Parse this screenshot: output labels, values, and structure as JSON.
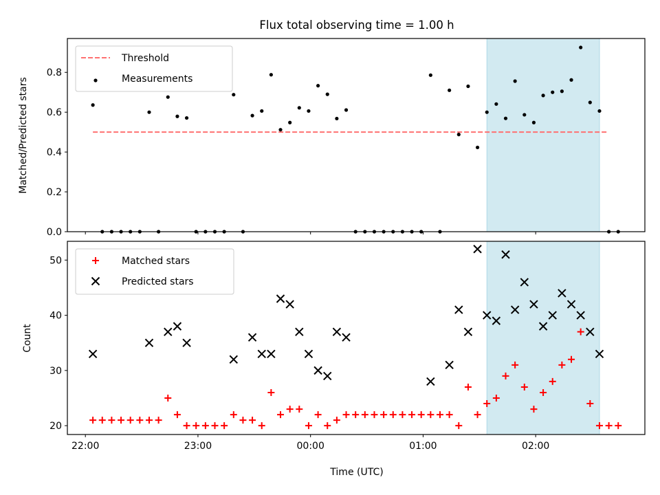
{
  "figure": {
    "title": "Flux total observing time = 1.00 h"
  },
  "chart_data": [
    {
      "type": "scatter",
      "ylabel": "Matched/Predicted stars",
      "xlabel": "",
      "x_unit": "hours from 22:00 UTC",
      "xlim": [
        -0.16,
        4.97
      ],
      "ylim": [
        0.0,
        0.97
      ],
      "yticks": [
        "0.0",
        "0.2",
        "0.4",
        "0.6",
        "0.8"
      ],
      "ytick_values": [
        0.0,
        0.2,
        0.4,
        0.6,
        0.8
      ],
      "highlight_span": [
        3.5667,
        4.5667
      ],
      "highlight_color": "#add8e6",
      "legend": [
        {
          "label": "Threshold",
          "marker": "dashed-line",
          "color": "#ff7070"
        },
        {
          "label": "Measurements",
          "marker": "dot",
          "color": "#000000"
        }
      ],
      "threshold": {
        "value": 0.5,
        "x_range": [
          0.0667,
          4.6333
        ]
      },
      "series": [
        {
          "name": "Measurements",
          "x": [
            0.0667,
            0.15,
            0.2333,
            0.3167,
            0.4,
            0.4833,
            0.5667,
            0.65,
            0.7333,
            0.8167,
            0.9,
            0.9833,
            1.0667,
            1.15,
            1.2333,
            1.3167,
            1.4,
            1.4833,
            1.5667,
            1.65,
            1.7333,
            1.8167,
            1.9,
            1.9833,
            2.0667,
            2.15,
            2.2333,
            2.3167,
            2.4,
            2.4833,
            2.5667,
            2.65,
            2.7333,
            2.8167,
            2.9,
            2.9833,
            3.0667,
            3.15,
            3.2333,
            3.3167,
            3.4,
            3.4833,
            3.5667,
            3.65,
            3.7333,
            3.8167,
            3.9,
            3.9833,
            4.0667,
            4.15,
            4.2333,
            4.3167,
            4.4,
            4.4833,
            4.5667,
            4.65,
            4.7333
          ],
          "y": [
            0.636,
            0,
            0,
            0,
            0,
            0,
            0.6,
            0,
            0.676,
            0.579,
            0.571,
            0,
            0,
            0,
            0,
            0.688,
            0,
            0.583,
            0.606,
            0.788,
            0.512,
            0.548,
            0.622,
            0.606,
            0.733,
            0.69,
            0.568,
            0.611,
            0,
            0,
            0,
            0,
            0,
            0,
            0,
            0,
            0.786,
            0,
            0.71,
            0.488,
            0.73,
            0.423,
            0.6,
            0.641,
            0.569,
            0.756,
            0.587,
            0.548,
            0.684,
            0.7,
            0.705,
            0.762,
            0.925,
            0.649,
            0.606,
            0,
            0
          ]
        }
      ]
    },
    {
      "type": "scatter",
      "ylabel": "Count",
      "xlabel": "Time (UTC)",
      "x_unit": "hours from 22:00 UTC",
      "xlim": [
        -0.16,
        4.97
      ],
      "ylim": [
        18.4,
        53.4
      ],
      "xticks": [
        "22:00",
        "23:00",
        "00:00",
        "01:00",
        "02:00"
      ],
      "xtick_values": [
        0,
        1,
        2,
        3,
        4
      ],
      "yticks": [
        "20",
        "30",
        "40",
        "50"
      ],
      "ytick_values": [
        20,
        30,
        40,
        50
      ],
      "highlight_span": [
        3.5667,
        4.5667
      ],
      "highlight_color": "#add8e6",
      "legend": [
        {
          "label": "Matched stars",
          "marker": "plus",
          "color": "#ff0000"
        },
        {
          "label": "Predicted stars",
          "marker": "x",
          "color": "#000000"
        }
      ],
      "series": [
        {
          "name": "Matched stars",
          "marker": "plus",
          "color": "#ff0000",
          "x": [
            0.0667,
            0.15,
            0.2333,
            0.3167,
            0.4,
            0.4833,
            0.5667,
            0.65,
            0.7333,
            0.8167,
            0.9,
            0.9833,
            1.0667,
            1.15,
            1.2333,
            1.3167,
            1.4,
            1.4833,
            1.5667,
            1.65,
            1.7333,
            1.8167,
            1.9,
            1.9833,
            2.0667,
            2.15,
            2.2333,
            2.3167,
            2.4,
            2.4833,
            2.5667,
            2.65,
            2.7333,
            2.8167,
            2.9,
            2.9833,
            3.0667,
            3.15,
            3.2333,
            3.3167,
            3.4,
            3.4833,
            3.5667,
            3.65,
            3.7333,
            3.8167,
            3.9,
            3.9833,
            4.0667,
            4.15,
            4.2333,
            4.3167,
            4.4,
            4.4833,
            4.5667,
            4.65,
            4.7333
          ],
          "y": [
            21,
            21,
            21,
            21,
            21,
            21,
            21,
            21,
            25,
            22,
            20,
            20,
            20,
            20,
            20,
            22,
            21,
            21,
            20,
            26,
            22,
            23,
            23,
            20,
            22,
            20,
            21,
            22,
            22,
            22,
            22,
            22,
            22,
            22,
            22,
            22,
            22,
            22,
            22,
            20,
            27,
            22,
            24,
            25,
            29,
            31,
            27,
            23,
            26,
            28,
            31,
            32,
            37,
            24,
            20,
            20,
            20
          ]
        },
        {
          "name": "Predicted stars",
          "marker": "x",
          "color": "#000000",
          "x": [
            0.0667,
            0.5667,
            0.7333,
            0.8167,
            0.9,
            1.3167,
            1.4833,
            1.5667,
            1.65,
            1.7333,
            1.8167,
            1.9,
            1.9833,
            2.0667,
            2.15,
            2.2333,
            2.3167,
            3.0667,
            3.2333,
            3.3167,
            3.4,
            3.4833,
            3.5667,
            3.65,
            3.7333,
            3.8167,
            3.9,
            3.9833,
            4.0667,
            4.15,
            4.2333,
            4.3167,
            4.4,
            4.4833,
            4.5667
          ],
          "y": [
            33,
            35,
            37,
            38,
            35,
            32,
            36,
            33,
            33,
            43,
            42,
            37,
            33,
            30,
            29,
            37,
            36,
            28,
            31,
            41,
            37,
            52,
            40,
            39,
            51,
            41,
            46,
            42,
            38,
            40,
            44,
            42,
            40,
            37,
            33
          ]
        }
      ]
    }
  ]
}
